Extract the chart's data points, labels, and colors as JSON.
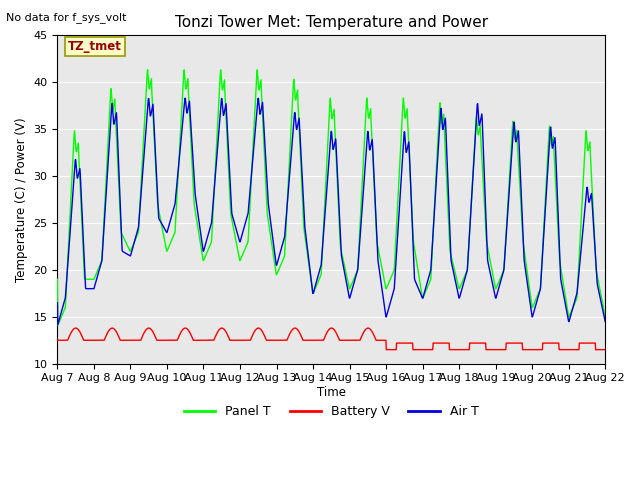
{
  "title": "Tonzi Tower Met: Temperature and Power",
  "top_left_text": "No data for f_sys_volt",
  "ylabel": "Temperature (C) / Power (V)",
  "xlabel": "Time",
  "ylim": [
    10,
    45
  ],
  "yticks": [
    10,
    15,
    20,
    25,
    30,
    35,
    40,
    45
  ],
  "date_labels": [
    "Aug 7",
    "Aug 8",
    "Aug 9",
    "Aug 10",
    "Aug 11",
    "Aug 12",
    "Aug 13",
    "Aug 14",
    "Aug 15",
    "Aug 16",
    "Aug 17",
    "Aug 18",
    "Aug 19",
    "Aug 20",
    "Aug 21",
    "Aug 22"
  ],
  "legend_entries": [
    "Panel T",
    "Battery V",
    "Air T"
  ],
  "panel_color": "#00ff00",
  "battery_color": "#ff0000",
  "air_color": "#0000dd",
  "bg_inner_color": "#e8e8e8",
  "annotation_box_facecolor": "#ffffcc",
  "annotation_box_edgecolor": "#999900",
  "annotation_text": "TZ_tmet",
  "annotation_text_color": "#990000",
  "figsize": [
    6.4,
    4.8
  ],
  "dpi": 100
}
